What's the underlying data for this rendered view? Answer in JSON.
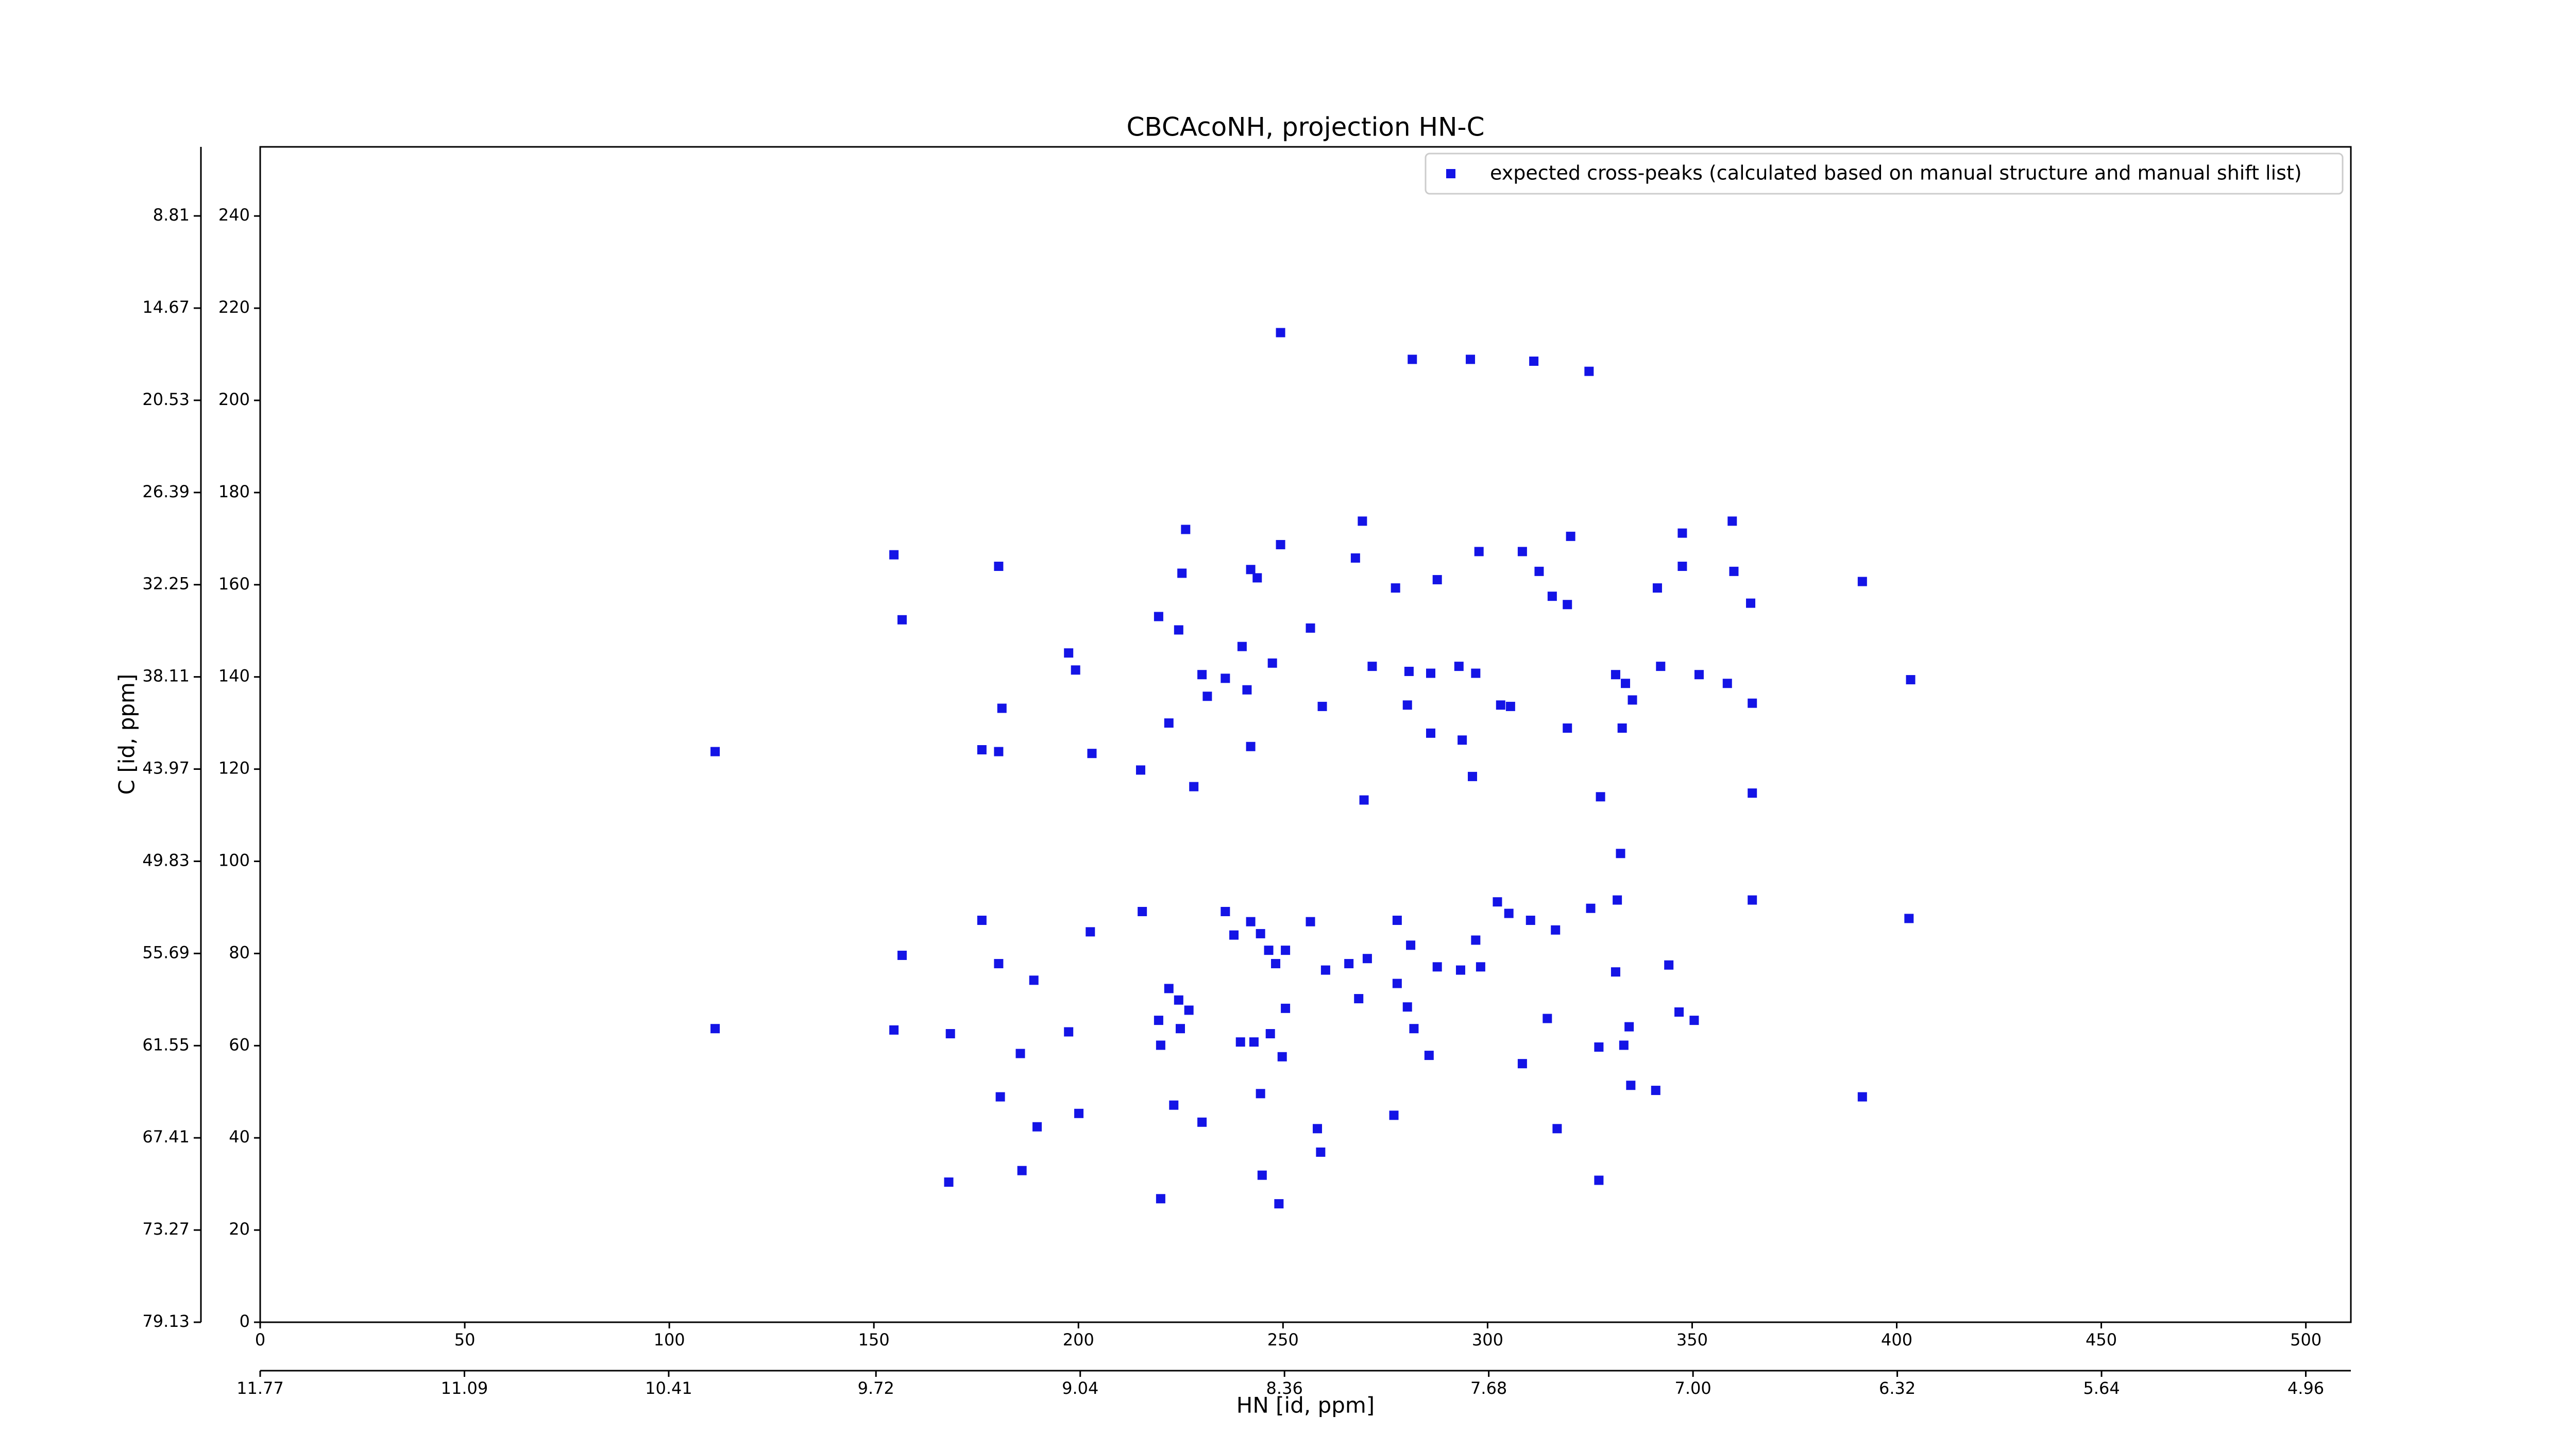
{
  "chart_data": {
    "type": "scatter",
    "title": "CBCAcoNH, projection HN-C",
    "xlabel": "HN [id, ppm]",
    "ylabel": "C [id, ppm]",
    "xlim": [
      0,
      511
    ],
    "ylim": [
      0,
      255
    ],
    "xticks": [
      0,
      50,
      100,
      150,
      200,
      250,
      300,
      350,
      400,
      450,
      500
    ],
    "yticks": [
      0,
      20,
      40,
      60,
      80,
      100,
      120,
      140,
      160,
      180,
      200,
      220,
      240
    ],
    "x2lim": [
      11.77,
      4.81
    ],
    "x2ticks": [
      11.77,
      11.09,
      10.41,
      9.72,
      9.04,
      8.36,
      7.68,
      {
        "value": 7,
        "label": "7.00"
      },
      6.32,
      5.64,
      4.96
    ],
    "y2lim": [
      79.13,
      4.42
    ],
    "y2ticks": [
      79.13,
      73.27,
      67.41,
      61.55,
      55.69,
      49.83,
      43.97,
      38.11,
      32.25,
      26.39,
      20.53,
      14.67,
      8.81
    ],
    "legend": "upper right",
    "series": [
      {
        "name": "expected cross-peaks (calculated based on manual structure and manual shift list)",
        "color": "#1414e6",
        "x": [
          249.4,
          281.6,
          295.8,
          311.3,
          324.8,
          154.9,
          156.9,
          180.5,
          226.2,
          225.3,
          249.4,
          242.1,
          243.7,
          269.4,
          267.7,
          277.5,
          287.7,
          297.9,
          308.5,
          312.6,
          320.3,
          315.8,
          319.5,
          341.5,
          347.6,
          347.6,
          359.8,
          360.2,
          364.3,
          391.6,
          219.6,
          224.5,
          240.0,
          247.4,
          256.7,
          197.6,
          199.3,
          230.2,
          235.9,
          231.5,
          241.2,
          259.6,
          271.8,
          280.8,
          286.1,
          293.0,
          297.1,
          280.4,
          286.1,
          293.8,
          303.2,
          305.6,
          319.5,
          331.3,
          333.7,
          335.4,
          332.9,
          342.3,
          351.7,
          358.6,
          364.7,
          403.4,
          181.3,
          222.1,
          176.4,
          180.5,
          203.3,
          215.2,
          228.2,
          242.1,
          111.2,
          269.8,
          296.3,
          327.6,
          364.7,
          332.5,
          364.7,
          403.0,
          176.4,
          156.9,
          180.5,
          189.1,
          202.9,
          215.6,
          235.9,
          238.0,
          242.1,
          244.5,
          246.5,
          248.2,
          250.6,
          256.7,
          260.4,
          266.1,
          270.6,
          277.9,
          281.2,
          287.7,
          297.1,
          293.4,
          298.3,
          302.4,
          305.2,
          310.5,
          316.6,
          325.2,
          331.7,
          331.3,
          344.3,
          222.1,
          224.5,
          227.0,
          219.6,
          224.9,
          220.1,
          239.6,
          242.9,
          246.9,
          249.8,
          250.6,
          268.5,
          277.9,
          280.4,
          282.0,
          285.7,
          314.6,
          308.5,
          327.2,
          333.3,
          334.6,
          346.8,
          350.5,
          111.2,
          154.9,
          168.7,
          185.8,
          197.6,
          180.9,
          189.9,
          200.1,
          223.3,
          230.2,
          244.5,
          277.1,
          317.0,
          335.0,
          341.1,
          391.6,
          168.3,
          186.2,
          244.9,
          258.4,
          259.2,
          249.0,
          220.1,
          327.2
        ],
        "y": [
          214.7,
          208.9,
          208.9,
          208.5,
          206.3,
          166.5,
          152.4,
          164.0,
          172.0,
          162.5,
          168.7,
          163.3,
          161.5,
          173.8,
          165.8,
          159.3,
          161.1,
          167.2,
          167.2,
          162.9,
          170.5,
          157.5,
          155.7,
          159.3,
          171.2,
          164.0,
          173.8,
          162.9,
          156.0,
          160.7,
          153.1,
          150.2,
          146.6,
          143.0,
          150.6,
          145.2,
          141.5,
          140.5,
          139.7,
          135.8,
          137.2,
          133.6,
          142.3,
          141.2,
          140.8,
          142.3,
          140.8,
          133.9,
          127.8,
          126.3,
          133.9,
          133.6,
          128.9,
          140.5,
          138.6,
          135.0,
          128.9,
          142.3,
          140.5,
          138.6,
          134.3,
          139.4,
          133.2,
          130.0,
          124.2,
          123.8,
          123.4,
          119.8,
          116.2,
          124.9,
          123.8,
          113.3,
          118.4,
          114.0,
          114.8,
          101.7,
          91.6,
          87.6,
          87.2,
          79.6,
          77.8,
          74.2,
          84.7,
          89.1,
          89.1,
          84.0,
          86.9,
          84.3,
          80.7,
          77.8,
          80.7,
          86.9,
          76.4,
          77.8,
          78.9,
          87.2,
          81.8,
          77.1,
          82.9,
          76.4,
          77.1,
          91.2,
          88.7,
          87.2,
          85.1,
          89.8,
          91.6,
          76.0,
          77.5,
          72.4,
          69.9,
          67.7,
          65.5,
          63.7,
          60.1,
          60.8,
          60.8,
          62.6,
          57.6,
          68.1,
          70.2,
          73.5,
          68.4,
          63.7,
          57.9,
          65.9,
          56.1,
          59.7,
          60.1,
          64.1,
          67.3,
          65.5,
          63.7,
          63.4,
          62.6,
          58.3,
          63.0,
          48.9,
          42.4,
          45.3,
          47.1,
          43.4,
          49.6,
          44.9,
          42.0,
          51.4,
          50.3,
          48.9,
          30.4,
          32.9,
          31.9,
          42.0,
          36.9,
          25.7,
          26.8,
          30.8
        ]
      }
    ]
  }
}
